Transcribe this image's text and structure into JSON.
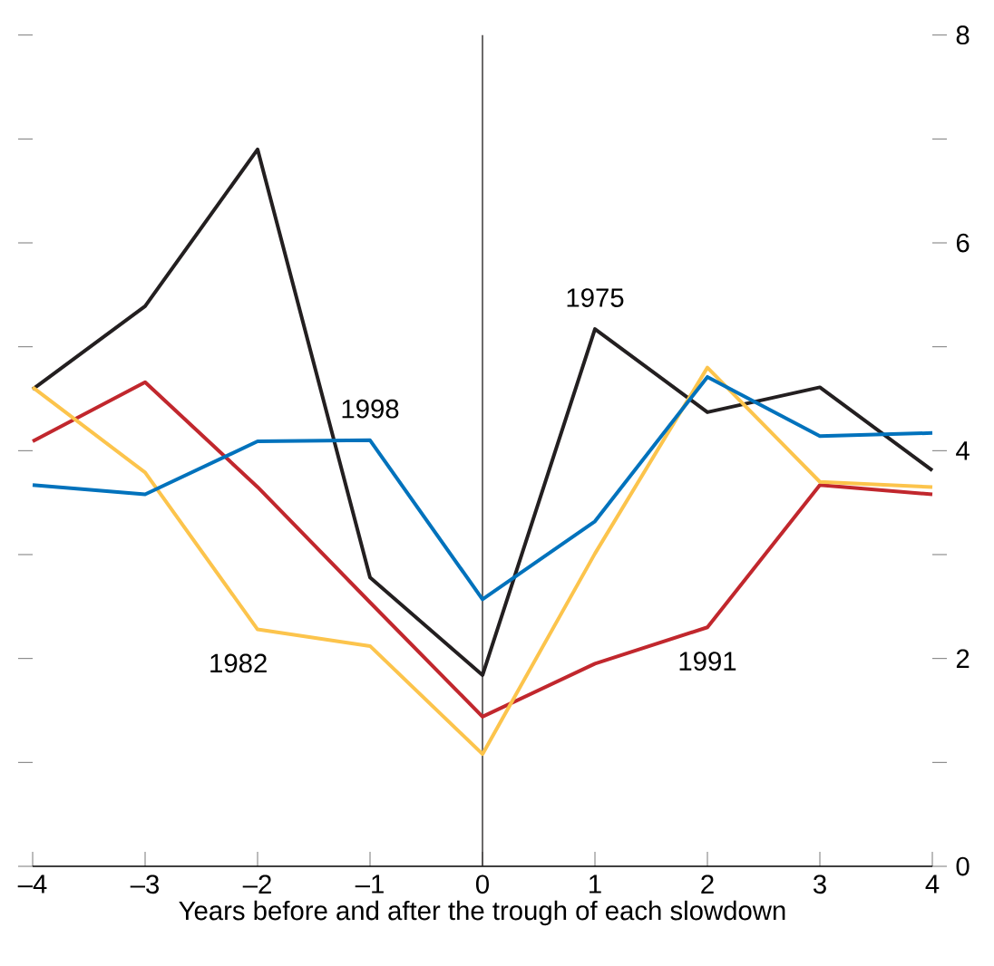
{
  "chart_data": {
    "type": "line",
    "xlabel": "Years before and after the trough of each slowdown",
    "x": [
      -4,
      -3,
      -2,
      -1,
      0,
      1,
      2,
      3,
      4
    ],
    "series": [
      {
        "color": "#231f20",
        "values": [
          4.59,
          5.39,
          6.9,
          2.78,
          1.84,
          5.17,
          4.37,
          4.61,
          3.81
        ]
      },
      {
        "color": "#c1272d",
        "values": [
          4.09,
          4.66,
          3.65,
          2.54,
          1.44,
          1.95,
          2.3,
          3.67,
          3.58
        ]
      },
      {
        "color": "#fcc44c",
        "values": [
          4.61,
          3.79,
          2.28,
          2.12,
          1.08,
          3.01,
          4.8,
          3.7,
          3.65
        ]
      },
      {
        "color": "#0072bc",
        "values": [
          3.67,
          3.58,
          4.09,
          4.1,
          2.57,
          3.32,
          4.71,
          4.14,
          4.17
        ]
      }
    ],
    "annotations": [
      {
        "text": "1975",
        "x": 1,
        "y": 5.17
      },
      {
        "text": "1998",
        "x": -1,
        "y": 4.1
      },
      {
        "text": "1982",
        "x": -2,
        "y": 2.28
      },
      {
        "text": "1991",
        "x": 2,
        "y": 2.3
      }
    ],
    "xlim": [
      -4,
      4
    ],
    "xticks": [
      {
        "value": -4,
        "label": "–4"
      },
      {
        "value": -3,
        "label": "–3"
      },
      {
        "value": -2,
        "label": "–2"
      },
      {
        "value": -1,
        "label": "–1"
      },
      0,
      1,
      2,
      3,
      4
    ],
    "ylim": [
      0,
      8
    ],
    "yticks": [
      0,
      {
        "value": 1,
        "label": null
      },
      2,
      {
        "value": 3,
        "label": null
      },
      4,
      {
        "value": 5,
        "label": null
      },
      6,
      {
        "value": 7,
        "label": null
      },
      8
    ],
    "ref_lines": [
      {
        "axis": "x",
        "value": 0,
        "color": "#231f20"
      }
    ],
    "grid": false,
    "legend": false,
    "marker": "none",
    "line_style": "solid"
  }
}
